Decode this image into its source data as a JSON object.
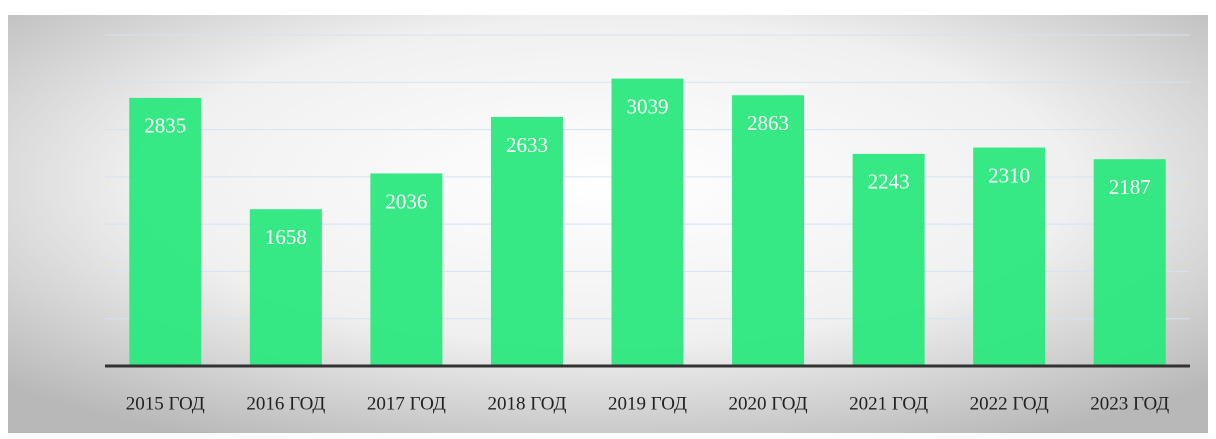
{
  "chart_data": {
    "type": "bar",
    "categories": [
      "2015 ГОД",
      "2016 ГОД",
      "2017 ГОД",
      "2018 ГОД",
      "2019 ГОД",
      "2020 ГОД",
      "2021 ГОД",
      "2022 ГОД",
      "2023 ГОД"
    ],
    "values": [
      2835,
      1658,
      2036,
      2633,
      3039,
      2863,
      2243,
      2310,
      2187
    ],
    "color": "#2be87e",
    "ylim": [
      0,
      3500
    ],
    "yticks": [
      0,
      500,
      1000,
      1500,
      2000,
      2500,
      3000,
      3500
    ],
    "grid": true
  }
}
